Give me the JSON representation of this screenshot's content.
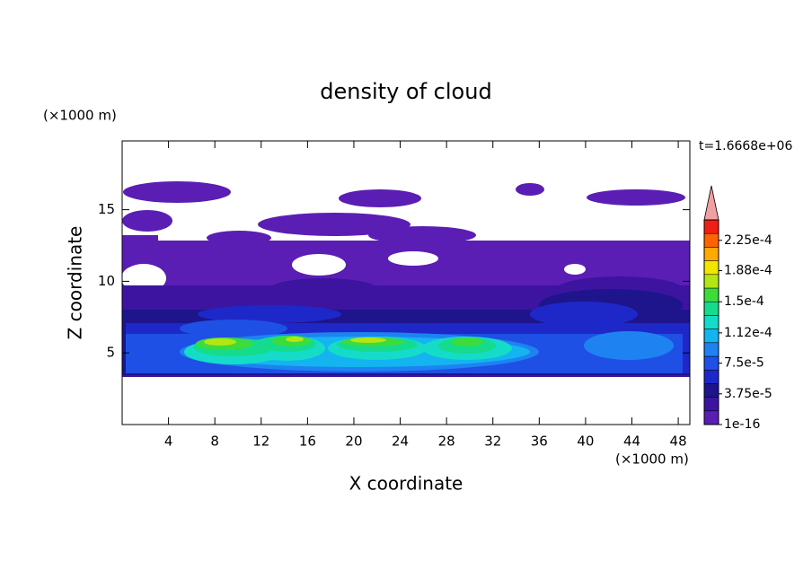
{
  "chart_data": {
    "type": "contour",
    "title": "density of cloud",
    "x_label": "X coordinate",
    "y_label": "Z coordinate",
    "x_unit": "(×1000 m)",
    "y_unit": "(×1000 m)",
    "time_label": "t=1.6668e+06",
    "xlim": [
      0,
      49
    ],
    "ylim": [
      0,
      19.8
    ],
    "xticks": [
      4,
      8,
      12,
      16,
      20,
      24,
      28,
      32,
      36,
      40,
      44,
      48
    ],
    "yticks": [
      5,
      10,
      15
    ],
    "colorbar": {
      "clim": [
        1e-16,
        0.00025
      ],
      "ticks": [
        {
          "value": 1e-16,
          "label": "1e-16"
        },
        {
          "value": 3.75e-05,
          "label": "3.75e-5"
        },
        {
          "value": 7.5e-05,
          "label": "7.5e-5"
        },
        {
          "value": 0.000112,
          "label": "1.12e-4"
        },
        {
          "value": 0.00015,
          "label": "1.5e-4"
        },
        {
          "value": 0.000188,
          "label": "1.88e-4"
        },
        {
          "value": 0.000225,
          "label": "2.25e-4"
        }
      ],
      "colors": [
        "#5a1eb4",
        "#3c14a0",
        "#1e148c",
        "#1e28c8",
        "#1e50e6",
        "#1e82f0",
        "#14b4f0",
        "#14dcc8",
        "#14dc8c",
        "#3cdc3c",
        "#b4e614",
        "#f0e600",
        "#ffaa00",
        "#ff6400",
        "#f01e14"
      ],
      "over_color": "#f0a0a0"
    }
  }
}
